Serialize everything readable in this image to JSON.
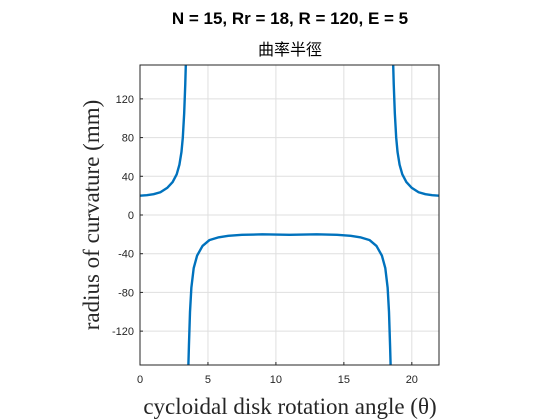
{
  "chart_data": {
    "type": "line",
    "title": "N = 15, Rr = 18, R = 120, E = 5",
    "subtitle": "曲率半徑",
    "xlabel": "cycloidal disk rotation angle (θ)",
    "ylabel": "radius of curvature (mm)",
    "xlim": [
      0,
      22
    ],
    "ylim": [
      -155,
      155
    ],
    "xticks": [
      0,
      5,
      10,
      15,
      20
    ],
    "yticks": [
      -120,
      -80,
      -40,
      0,
      40,
      80,
      120
    ],
    "grid": true,
    "color": "#0072bd",
    "series": [
      {
        "points": [
          [
            0.0,
            20
          ],
          [
            0.5,
            20.5
          ],
          [
            1.0,
            21.5
          ],
          [
            1.5,
            23.5
          ],
          [
            2.0,
            28
          ],
          [
            2.4,
            34
          ],
          [
            2.7,
            42
          ],
          [
            2.9,
            52
          ],
          [
            3.05,
            65
          ],
          [
            3.15,
            80
          ],
          [
            3.25,
            105
          ],
          [
            3.33,
            135
          ],
          [
            3.38,
            160
          ],
          [
            3.55,
            -160
          ],
          [
            3.6,
            -135
          ],
          [
            3.68,
            -100
          ],
          [
            3.78,
            -75
          ],
          [
            3.95,
            -55
          ],
          [
            4.2,
            -42
          ],
          [
            4.6,
            -32
          ],
          [
            5.1,
            -26
          ],
          [
            5.8,
            -23
          ],
          [
            6.5,
            -21.5
          ],
          [
            7.5,
            -20.5
          ],
          [
            9.0,
            -20
          ],
          [
            11.0,
            -20.5
          ],
          [
            13.0,
            -20
          ],
          [
            14.5,
            -20.5
          ],
          [
            15.5,
            -21.5
          ],
          [
            16.2,
            -23
          ],
          [
            16.9,
            -26
          ],
          [
            17.4,
            -32
          ],
          [
            17.8,
            -42
          ],
          [
            18.05,
            -55
          ],
          [
            18.22,
            -75
          ],
          [
            18.32,
            -100
          ],
          [
            18.4,
            -135
          ],
          [
            18.45,
            -160
          ],
          [
            18.62,
            160
          ],
          [
            18.67,
            135
          ],
          [
            18.75,
            105
          ],
          [
            18.85,
            80
          ],
          [
            18.95,
            65
          ],
          [
            19.1,
            52
          ],
          [
            19.3,
            42
          ],
          [
            19.6,
            34
          ],
          [
            20.0,
            28
          ],
          [
            20.5,
            23.5
          ],
          [
            21.0,
            21.5
          ],
          [
            21.5,
            20.5
          ],
          [
            22.0,
            20
          ]
        ]
      }
    ]
  }
}
